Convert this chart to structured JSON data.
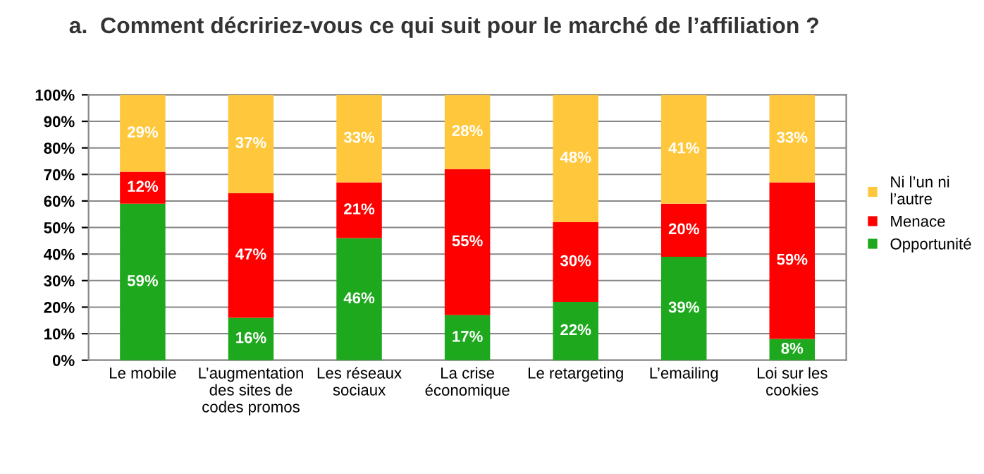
{
  "chart_data": {
    "type": "bar",
    "stacked": true,
    "title": "a.  Comment décririez-vous ce qui suit pour le marché de l’affiliation ?",
    "categories": [
      "Le mobile",
      "L’augmentation\ndes sites de\ncodes promos",
      "Les réseaux\nsociaux",
      "La crise\néconomique",
      "Le retargeting",
      "L’emailing",
      "Loi sur les\ncookies"
    ],
    "series": [
      {
        "name": "Opportunité",
        "color": "#1ea81e",
        "values": [
          59,
          16,
          46,
          17,
          22,
          39,
          8
        ],
        "value_labels": [
          "59%",
          "16%",
          "46%",
          "17%",
          "22%",
          "39%",
          "8%"
        ]
      },
      {
        "name": "Menace",
        "color": "#ff0000",
        "values": [
          12,
          47,
          21,
          55,
          30,
          20,
          59
        ],
        "value_labels": [
          "12%",
          "47%",
          "21%",
          "55%",
          "30%",
          "20%",
          "59%"
        ]
      },
      {
        "name": "Ni l’un ni\nl’autre",
        "color": "#ffc83c",
        "values": [
          29,
          37,
          33,
          28,
          48,
          41,
          33
        ],
        "value_labels": [
          "29%",
          "37%",
          "33%",
          "28%",
          "48%",
          "41%",
          "33%"
        ]
      }
    ],
    "ylim": [
      0,
      100
    ],
    "yticks": [
      {
        "value": 0,
        "label": "0%"
      },
      {
        "value": 10,
        "label": "10%"
      },
      {
        "value": 20,
        "label": "20%"
      },
      {
        "value": 30,
        "label": "30%"
      },
      {
        "value": 40,
        "label": "40%"
      },
      {
        "value": 50,
        "label": "50%"
      },
      {
        "value": 60,
        "label": "60%"
      },
      {
        "value": 70,
        "label": "70%"
      },
      {
        "value": 80,
        "label": "80%"
      },
      {
        "value": 90,
        "label": "90%"
      },
      {
        "value": 100,
        "label": "100%"
      }
    ],
    "grid": "y",
    "legend": "right"
  }
}
